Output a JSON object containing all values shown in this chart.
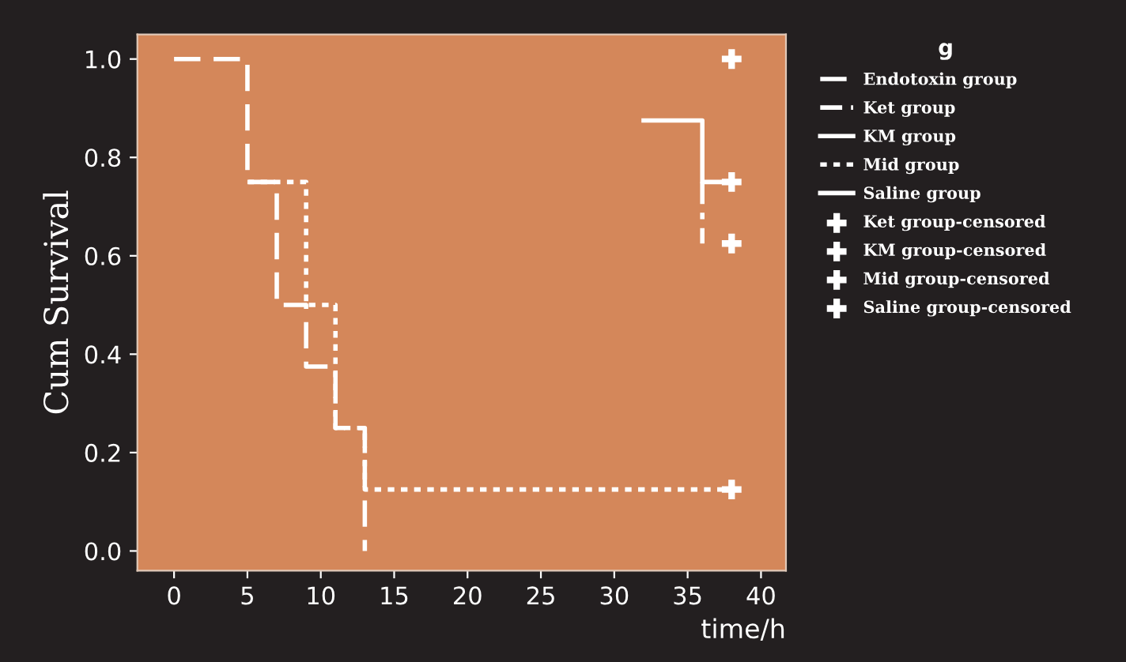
{
  "chart_data": {
    "type": "step",
    "ylabel": "Cum Survival",
    "xlabel": "time/h",
    "legend_title": "g",
    "legend": "right",
    "xlim": [
      -2.5,
      41.7
    ],
    "ylim": [
      -0.04,
      1.05
    ],
    "xticks": [
      0,
      5,
      10,
      15,
      20,
      25,
      30,
      35,
      40
    ],
    "yticks": [
      {
        "value": 0,
        "label": "0.0"
      },
      {
        "value": 0.2,
        "label": "0.2"
      },
      {
        "value": 0.4,
        "label": "0.4"
      },
      {
        "value": 0.6,
        "label": "0.6"
      },
      {
        "value": 0.8,
        "label": "0.8"
      },
      {
        "value": 1,
        "label": "1.0"
      }
    ],
    "grid": false,
    "series": [
      {
        "name": "Endotoxin group",
        "color": "#ffffff",
        "line_style": "dashed",
        "x": [
          0,
          5,
          7,
          9,
          11,
          13
        ],
        "values": [
          1,
          0.75,
          0.5,
          0.375,
          0.25,
          0
        ]
      },
      {
        "name": "Ket group",
        "color": "#ffffff",
        "line_style": "dashdot",
        "x": [
          36,
          36
        ],
        "values": [
          0.75,
          0.625
        ]
      },
      {
        "name": "KM group",
        "color": "#ffffff",
        "line_style": "solid",
        "x": [
          32,
          36,
          38
        ],
        "values": [
          0.875,
          0.75,
          0.75
        ]
      },
      {
        "name": "Mid group",
        "color": "#ffffff",
        "line_style": "dotted",
        "x": [
          5,
          9,
          11,
          13,
          38
        ],
        "values": [
          0.75,
          0.5,
          0.25,
          0.125,
          0.125
        ]
      },
      {
        "name": "Saline group",
        "color": "#ffffff",
        "line_style": "solid"
      },
      {
        "name": "Ket group-censored",
        "type": "scatter",
        "marker": "cross",
        "color": "#ffffff",
        "x": [
          38
        ],
        "values": [
          0.625
        ]
      },
      {
        "name": "KM group-censored",
        "type": "scatter",
        "marker": "cross",
        "color": "#ffffff",
        "x": [
          38
        ],
        "values": [
          0.75
        ]
      },
      {
        "name": "Mid group-censored",
        "type": "scatter",
        "marker": "cross",
        "color": "#ffffff",
        "x": [
          38
        ],
        "values": [
          0.125
        ]
      },
      {
        "name": "Saline group-censored",
        "type": "scatter",
        "marker": "cross",
        "color": "#ffffff",
        "x": [
          38
        ],
        "values": [
          1
        ]
      }
    ]
  }
}
